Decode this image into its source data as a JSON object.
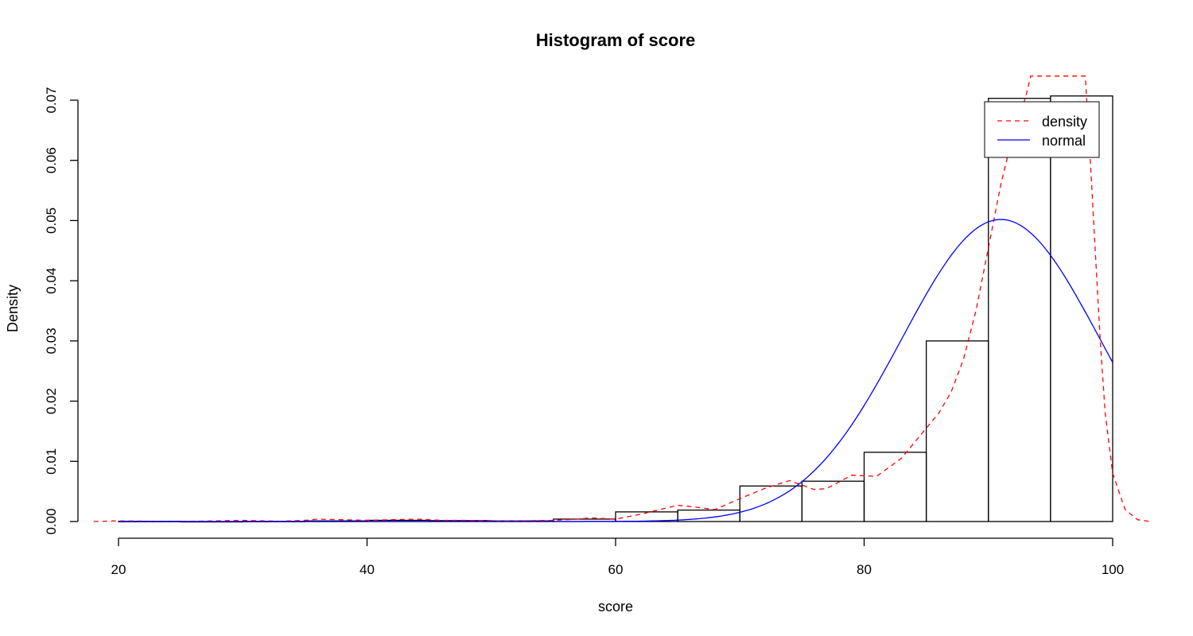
{
  "chart_data": {
    "type": "bar",
    "title": "Histogram of score",
    "xlabel": "score",
    "ylabel": "Density",
    "xlim": [
      20,
      100
    ],
    "ylim": [
      0,
      0.07
    ],
    "x_ticks": [
      "20",
      "40",
      "60",
      "80",
      "100"
    ],
    "y_ticks": [
      "0.00",
      "0.01",
      "0.02",
      "0.03",
      "0.04",
      "0.05",
      "0.06",
      "0.07"
    ],
    "grid": false,
    "legend_position": "top-right",
    "legend": [
      {
        "label": "density",
        "color": "#ff0000",
        "style": "dashed"
      },
      {
        "label": "normal",
        "color": "#0000ff",
        "style": "solid"
      }
    ],
    "bins": [
      {
        "from": 20,
        "to": 25,
        "value": 3e-05
      },
      {
        "from": 25,
        "to": 30,
        "value": 0.0
      },
      {
        "from": 30,
        "to": 35,
        "value": 3e-05
      },
      {
        "from": 35,
        "to": 40,
        "value": 0.0001
      },
      {
        "from": 40,
        "to": 45,
        "value": 0.0002
      },
      {
        "from": 45,
        "to": 50,
        "value": 0.00015
      },
      {
        "from": 50,
        "to": 55,
        "value": 0.0001
      },
      {
        "from": 55,
        "to": 60,
        "value": 0.0004
      },
      {
        "from": 60,
        "to": 65,
        "value": 0.0016
      },
      {
        "from": 65,
        "to": 70,
        "value": 0.0019
      },
      {
        "from": 70,
        "to": 75,
        "value": 0.0059
      },
      {
        "from": 75,
        "to": 80,
        "value": 0.0067
      },
      {
        "from": 80,
        "to": 85,
        "value": 0.0115
      },
      {
        "from": 85,
        "to": 90,
        "value": 0.03
      },
      {
        "from": 90,
        "to": 95,
        "value": 0.0703
      },
      {
        "from": 95,
        "to": 100,
        "value": 0.0707
      }
    ],
    "series": [
      {
        "name": "density",
        "color": "#ff0000",
        "style": "dashed",
        "x": [
          18,
          20,
          25,
          30,
          33,
          35,
          36,
          38,
          40,
          42,
          44,
          46,
          48,
          50,
          52,
          55,
          57,
          58,
          60,
          62,
          64,
          65,
          66,
          68,
          70,
          72,
          74,
          76,
          77,
          79,
          81,
          83,
          85,
          86,
          87,
          88,
          89,
          90,
          91,
          92,
          93,
          93.4,
          97.8,
          98.2,
          98.6,
          99,
          99.4,
          100,
          101,
          102,
          103
        ],
        "y": [
          0,
          0.0001,
          0.0,
          0.0002,
          5e-05,
          0.0002,
          0.0004,
          0.0003,
          0.0002,
          0.0003,
          0.0004,
          0.0002,
          0.0002,
          0.0001,
          0.0001,
          0.0002,
          0.0004,
          0.0006,
          0.0004,
          0.0012,
          0.0022,
          0.0027,
          0.0025,
          0.002,
          0.0038,
          0.0055,
          0.0068,
          0.0053,
          0.0055,
          0.0077,
          0.0075,
          0.0105,
          0.0155,
          0.018,
          0.0215,
          0.027,
          0.035,
          0.0455,
          0.056,
          0.0645,
          0.0705,
          0.074,
          0.074,
          0.06,
          0.045,
          0.03,
          0.018,
          0.008,
          0.002,
          0.0003,
          0.0
        ]
      },
      {
        "name": "normal",
        "color": "#0000ff",
        "style": "solid",
        "mean": 91.0,
        "sd": 7.95,
        "x_range": [
          20,
          100
        ]
      }
    ]
  }
}
